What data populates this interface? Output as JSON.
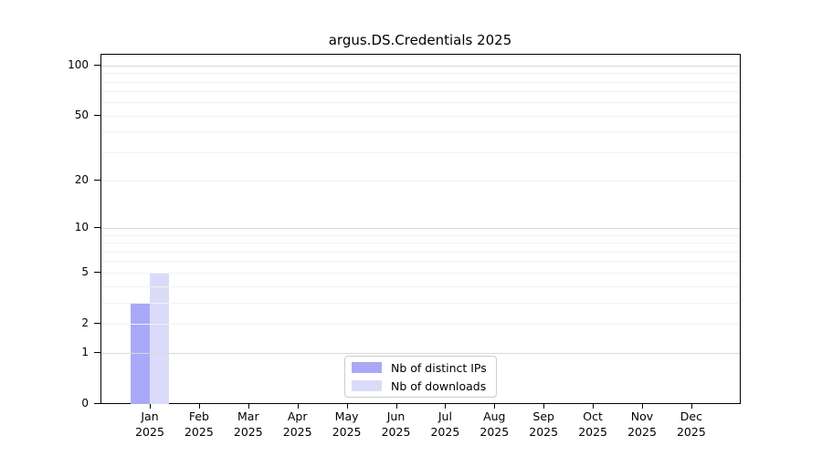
{
  "chart_data": {
    "type": "bar",
    "title": "argus.DS.Credentials 2025",
    "categories": [
      "Jan",
      "Feb",
      "Mar",
      "Apr",
      "May",
      "Jun",
      "Jul",
      "Aug",
      "Sep",
      "Oct",
      "Nov",
      "Dec"
    ],
    "category_sublabel": "2025",
    "series": [
      {
        "name": "Nb of distinct IPs",
        "color": "#a9a9f7",
        "values": [
          3,
          0,
          0,
          0,
          0,
          0,
          0,
          0,
          0,
          0,
          0,
          0
        ]
      },
      {
        "name": "Nb of downloads",
        "color": "#dbdbf9",
        "values": [
          5,
          0,
          0,
          0,
          0,
          0,
          0,
          0,
          0,
          0,
          0,
          0
        ]
      }
    ],
    "y_ticks": [
      0,
      1,
      2,
      5,
      10,
      20,
      50,
      100
    ],
    "scale": "log1p",
    "ylim": [
      0,
      116
    ],
    "xlabel": "",
    "ylabel": "",
    "grid": {
      "major": [
        1,
        10,
        100
      ],
      "minor": [
        2,
        3,
        4,
        5,
        6,
        7,
        8,
        9,
        20,
        30,
        40,
        50,
        60,
        70,
        80,
        90
      ]
    },
    "legend": {
      "position": "lower center",
      "items": [
        "Nb of distinct IPs",
        "Nb of downloads"
      ]
    }
  }
}
